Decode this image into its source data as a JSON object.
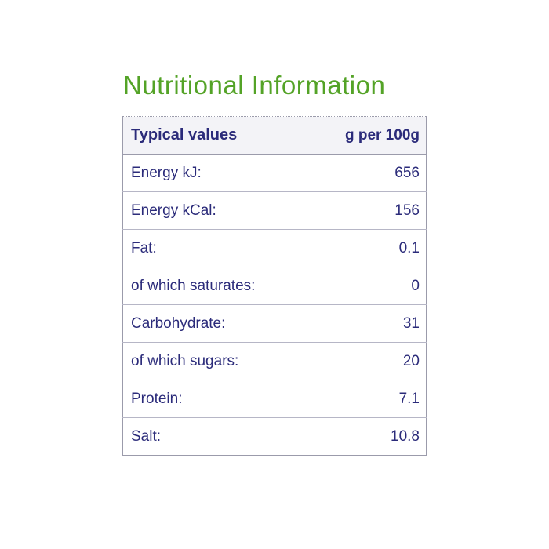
{
  "page": {
    "title": "Nutritional Information"
  },
  "table": {
    "header": {
      "col1": "Typical values",
      "col2": "g per 100g"
    },
    "rows": [
      {
        "label": "Energy kJ:",
        "value": "656"
      },
      {
        "label": "Energy kCal:",
        "value": "156"
      },
      {
        "label": "Fat:",
        "value": "0.1"
      },
      {
        "label": "of which saturates:",
        "value": "0"
      },
      {
        "label": "Carbohydrate:",
        "value": "31"
      },
      {
        "label": "of which sugars:",
        "value": "20"
      },
      {
        "label": "Protein:",
        "value": "7.1"
      },
      {
        "label": "Salt:",
        "value": "10.8"
      }
    ]
  },
  "colors": {
    "title_green": "#54a327",
    "text_navy": "#2b2b7a",
    "border_gray": "#9b9bab",
    "row_line": "#b6b6c6",
    "header_bg": "#f3f3f7"
  }
}
